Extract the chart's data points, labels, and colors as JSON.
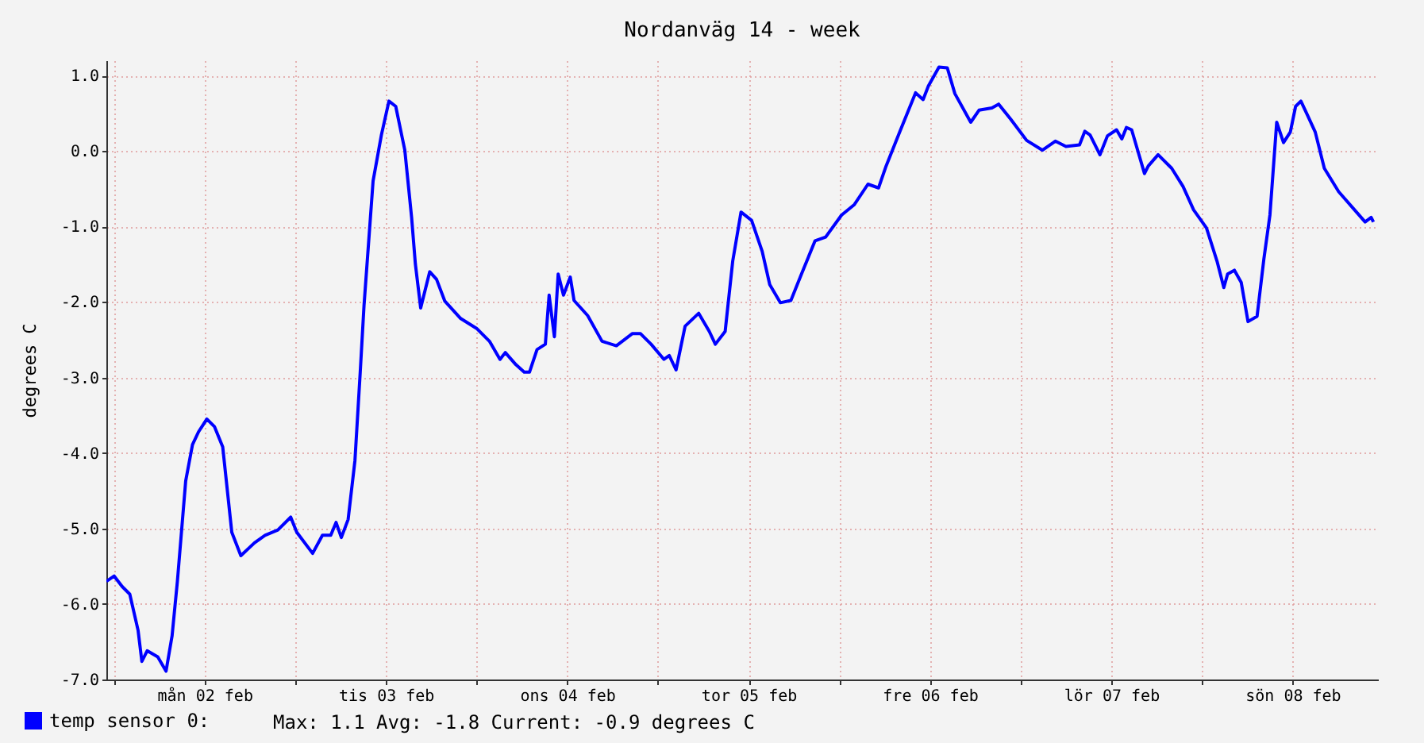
{
  "chart_data": {
    "type": "line",
    "title": "Nordanväg 14 - week",
    "ylabel": "degrees C",
    "x": [
      "--02-01T23:00",
      "--02-02T00:02",
      "--02-02T01:06",
      "--02-02T02:06",
      "--02-02T03:12",
      "--02-02T03:42",
      "--02-02T04:24",
      "--02-02T05:48",
      "--02-02T06:54",
      "--02-02T07:42",
      "--02-02T08:24",
      "--02-02T09:30",
      "--02-02T10:24",
      "--02-02T11:12",
      "--02-02T12:18",
      "--02-02T13:18",
      "--02-02T14:24",
      "--02-02T15:36",
      "--02-02T16:48",
      "--02-02T18:36",
      "--02-02T20:00",
      "--02-02T21:42",
      "--02-02T23:24",
      "--02-03T00:12",
      "--02-03T02:18",
      "--02-03T03:36",
      "--02-03T04:42",
      "--02-03T05:24",
      "--02-03T06:06",
      "--02-03T07:00",
      "--02-03T07:54",
      "--02-03T08:36",
      "--02-03T09:06",
      "--02-03T10:18",
      "--02-03T11:24",
      "--02-03T12:24",
      "--02-03T13:18",
      "--02-03T14:30",
      "--02-03T15:24",
      "--02-03T15:54",
      "--02-03T16:36",
      "--02-03T17:48",
      "--02-03T18:42",
      "--02-03T19:48",
      "--02-03T21:54",
      "--02-04T00:00",
      "--02-04T01:42",
      "--02-04T03:06",
      "--02-04T03:48",
      "--02-04T05:12",
      "--02-04T06:18",
      "--02-04T07:00",
      "--02-04T08:00",
      "--02-04T09:06",
      "--02-04T09:36",
      "--02-04T10:18",
      "--02-04T10:48",
      "--02-04T11:30",
      "--02-04T12:24",
      "--02-04T12:54",
      "--02-04T14:42",
      "--02-04T16:36",
      "--02-04T18:30",
      "--02-04T20:36",
      "--02-04T21:42",
      "--02-04T23:06",
      "--02-05T00:48",
      "--02-05T01:30",
      "--02-05T02:24",
      "--02-05T03:36",
      "--02-05T05:24",
      "--02-05T06:48",
      "--02-05T07:36",
      "--02-05T08:54",
      "--02-05T09:54",
      "--02-05T11:00",
      "--02-05T12:24",
      "--02-05T13:48",
      "--02-05T14:48",
      "--02-05T16:12",
      "--02-05T17:36",
      "--02-05T19:00",
      "--02-05T20:48",
      "--02-05T22:12",
      "--02-06T00:18",
      "--02-06T02:00",
      "--02-06T03:48",
      "--02-06T05:12",
      "--02-06T06:12",
      "--02-06T08:00",
      "--02-06T10:06",
      "--02-06T11:06",
      "--02-06T11:48",
      "--02-06T13:12",
      "--02-06T14:18",
      "--02-06T15:18",
      "--02-06T17:24",
      "--02-06T18:30",
      "--02-06T20:12",
      "--02-06T21:06",
      "--02-06T22:42",
      "--02-07T00:48",
      "--02-07T02:54",
      "--02-07T04:36",
      "--02-07T06:00",
      "--02-07T07:48",
      "--02-07T08:30",
      "--02-07T09:12",
      "--02-07T10:30",
      "--02-07T11:30",
      "--02-07T12:42",
      "--02-07T13:24",
      "--02-07T14:00",
      "--02-07T14:42",
      "--02-07T16:24",
      "--02-07T16:54",
      "--02-07T18:12",
      "--02-07T20:00",
      "--02-07T21:30",
      "--02-07T22:54",
      "--02-08T00:36",
      "--02-08T02:00",
      "--02-08T02:54",
      "--02-08T03:24",
      "--02-08T04:18",
      "--02-08T05:12",
      "--02-08T06:06",
      "--02-08T07:18",
      "--02-08T08:12",
      "--02-08T09:00",
      "--02-08T09:54",
      "--02-08T10:48",
      "--02-08T11:42",
      "--02-08T12:24",
      "--02-08T13:06",
      "--02-08T13:54",
      "--02-08T15:00",
      "--02-08T16:12",
      "--02-08T18:06",
      "--02-08T20:12",
      "--02-08T21:36",
      "--02-08T22:24",
      "--02-08T22:42"
    ],
    "series": [
      {
        "name": "temp sensor 0:",
        "color": "#0000ff",
        "values": [
          -5.7,
          -5.63,
          -5.77,
          -5.87,
          -6.35,
          -6.76,
          -6.62,
          -6.7,
          -6.89,
          -6.42,
          -5.7,
          -4.37,
          -3.89,
          -3.72,
          -3.55,
          -3.65,
          -3.92,
          -5.05,
          -5.36,
          -5.19,
          -5.09,
          -5.02,
          -4.85,
          -5.05,
          -5.33,
          -5.09,
          -5.09,
          -4.92,
          -5.12,
          -4.88,
          -4.1,
          -2.93,
          -2.05,
          -0.4,
          0.21,
          0.66,
          0.59,
          0.01,
          -0.88,
          -1.5,
          -2.08,
          -1.6,
          -1.7,
          -1.99,
          -2.22,
          -2.35,
          -2.52,
          -2.76,
          -2.67,
          -2.83,
          -2.93,
          -2.93,
          -2.63,
          -2.56,
          -1.91,
          -2.46,
          -1.63,
          -1.91,
          -1.67,
          -1.98,
          -2.18,
          -2.52,
          -2.58,
          -2.42,
          -2.42,
          -2.56,
          -2.76,
          -2.71,
          -2.9,
          -2.32,
          -2.15,
          -2.39,
          -2.56,
          -2.39,
          -1.46,
          -0.81,
          -0.92,
          -1.33,
          -1.77,
          -2.01,
          -1.98,
          -1.63,
          -1.19,
          -1.14,
          -0.85,
          -0.71,
          -0.44,
          -0.49,
          -0.2,
          0.25,
          0.77,
          0.68,
          0.86,
          1.11,
          1.1,
          0.76,
          0.38,
          0.54,
          0.57,
          0.62,
          0.42,
          0.14,
          0.01,
          0.13,
          0.06,
          0.08,
          0.26,
          0.21,
          -0.05,
          0.2,
          0.28,
          0.16,
          0.31,
          0.28,
          -0.3,
          -0.2,
          -0.05,
          -0.23,
          -0.47,
          -0.78,
          -1.02,
          -1.46,
          -1.81,
          -1.63,
          -1.58,
          -1.74,
          -2.26,
          -2.19,
          -1.43,
          -0.85,
          0.38,
          0.11,
          0.25,
          0.59,
          0.66,
          0.49,
          0.25,
          -0.23,
          -0.54,
          -0.78,
          -0.94,
          -0.88,
          -0.94
        ]
      }
    ],
    "xlim": [
      "--02-01T23:00",
      "--02-08T23:18"
    ],
    "xticks": [
      {
        "value": "--02-02T00:00",
        "label": null
      },
      {
        "value": "--02-02T12:00",
        "label": "mån 02 feb"
      },
      {
        "value": "--02-03T00:00",
        "label": null
      },
      {
        "value": "--02-03T12:00",
        "label": "tis 03 feb"
      },
      {
        "value": "--02-04T00:00",
        "label": null
      },
      {
        "value": "--02-04T12:00",
        "label": "ons 04 feb"
      },
      {
        "value": "--02-05T00:00",
        "label": null
      },
      {
        "value": "--02-05T12:00",
        "label": "tor 05 feb"
      },
      {
        "value": "--02-06T00:00",
        "label": null
      },
      {
        "value": "--02-06T12:00",
        "label": "fre 06 feb"
      },
      {
        "value": "--02-07T00:00",
        "label": null
      },
      {
        "value": "--02-07T12:00",
        "label": "lör 07 feb"
      },
      {
        "value": "--02-08T00:00",
        "label": null
      },
      {
        "value": "--02-08T12:00",
        "label": "sön 08 feb"
      }
    ],
    "ylim": [
      -7.0,
      1.2
    ],
    "yticks": [
      {
        "value": -7,
        "label": "-7.0"
      },
      {
        "value": -6,
        "label": "-6.0"
      },
      {
        "value": -5,
        "label": "-5.0"
      },
      {
        "value": -4,
        "label": "-4.0"
      },
      {
        "value": -3,
        "label": "-3.0"
      },
      {
        "value": -2,
        "label": "-2.0"
      },
      {
        "value": -1,
        "label": "-1.0"
      },
      {
        "value": 0,
        "label": "0.0"
      },
      {
        "value": 1,
        "label": "1.0"
      }
    ],
    "grid": true,
    "legend": "bottom left",
    "marker": "none",
    "line_style": "solid",
    "annotations": [
      "Max: 1.1   Avg: -1.8   Current: -0.9 degrees C"
    ]
  }
}
